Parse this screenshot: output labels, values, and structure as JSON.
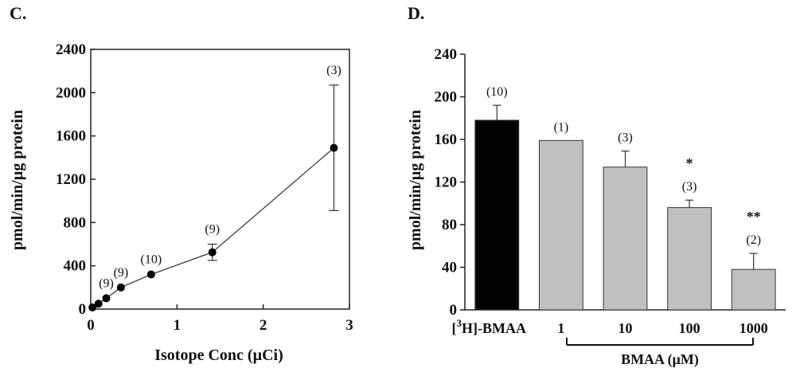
{
  "chart_data": [
    {
      "panel": "C.",
      "type": "line",
      "xlabel": "Isotope Conc (µCi)",
      "ylabel": "pmol/min/µg protein",
      "xlim": [
        0,
        3
      ],
      "ylim": [
        0,
        2400
      ],
      "xticks": [
        "0",
        "1",
        "2",
        "3"
      ],
      "yticks": [
        "0",
        "400",
        "800",
        "1200",
        "1600",
        "2000",
        "2400"
      ],
      "points": [
        {
          "x": 0.02,
          "y": 15,
          "err": 0,
          "n": ""
        },
        {
          "x": 0.09,
          "y": 50,
          "err": 0,
          "n": ""
        },
        {
          "x": 0.18,
          "y": 100,
          "err": 0,
          "n": "(9)"
        },
        {
          "x": 0.35,
          "y": 200,
          "err": 0,
          "n": "(9)"
        },
        {
          "x": 0.7,
          "y": 320,
          "err": 0,
          "n": "(10)"
        },
        {
          "x": 1.41,
          "y": 525,
          "err": 75,
          "n": "(9)"
        },
        {
          "x": 2.82,
          "y": 1490,
          "err": 580,
          "n": "(3)"
        }
      ]
    },
    {
      "panel": "D.",
      "type": "bar",
      "ylabel": "pmol/min/µg protein",
      "ylim": [
        0,
        240
      ],
      "yticks": [
        "0",
        "40",
        "80",
        "120",
        "160",
        "200",
        "240"
      ],
      "categories": [
        "[3H]-BMAA",
        "1",
        "10",
        "100",
        "1000"
      ],
      "first_category": {
        "sup": "3",
        "pre": "[",
        "post": "H]-BMAA"
      },
      "values": [
        178,
        159,
        134,
        96,
        38
      ],
      "errors": [
        14,
        0,
        15,
        7,
        15
      ],
      "n_labels": [
        "(10)",
        "(1)",
        "(3)",
        "(3)",
        "(2)"
      ],
      "significance": [
        "",
        "",
        "",
        "*",
        "**"
      ],
      "colors": [
        "#000000",
        "#c0c0c0",
        "#c0c0c0",
        "#c0c0c0",
        "#c0c0c0"
      ],
      "group_label": "BMAA (µM)"
    }
  ]
}
